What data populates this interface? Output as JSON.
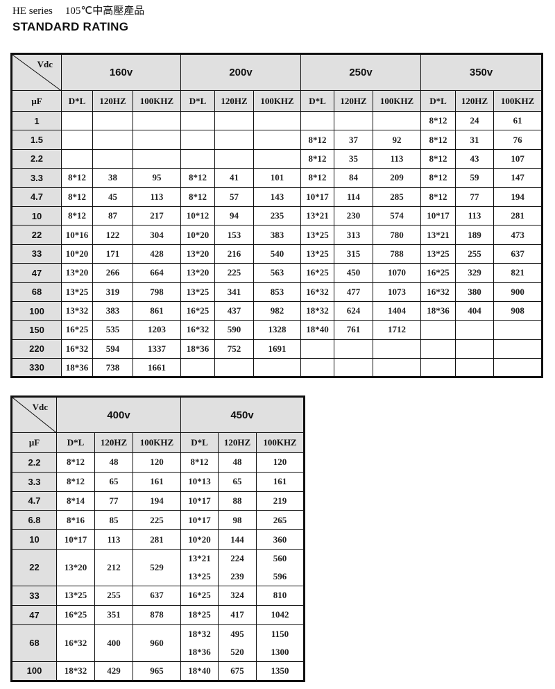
{
  "header": {
    "series": "HE series",
    "temp": "105℃中高壓產品",
    "title": "STANDARD RATING"
  },
  "corner": {
    "vdc": "Vdc",
    "uf": "μF"
  },
  "sub_headers": [
    "D*L",
    "120HZ",
    "100KHZ"
  ],
  "table1": {
    "voltages": [
      "160v",
      "200v",
      "250v",
      "350v"
    ],
    "rows": [
      {
        "uf": "1",
        "cells": [
          [],
          [],
          [],
          [
            "8*12",
            "24",
            "61"
          ]
        ]
      },
      {
        "uf": "1.5",
        "cells": [
          [],
          [],
          [
            "8*12",
            "37",
            "92"
          ],
          [
            "8*12",
            "31",
            "76"
          ]
        ]
      },
      {
        "uf": "2.2",
        "cells": [
          [],
          [],
          [
            "8*12",
            "35",
            "113"
          ],
          [
            "8*12",
            "43",
            "107"
          ]
        ]
      },
      {
        "uf": "3.3",
        "cells": [
          [
            "8*12",
            "38",
            "95"
          ],
          [
            "8*12",
            "41",
            "101"
          ],
          [
            "8*12",
            "84",
            "209"
          ],
          [
            "8*12",
            "59",
            "147"
          ]
        ]
      },
      {
        "uf": "4.7",
        "cells": [
          [
            "8*12",
            "45",
            "113"
          ],
          [
            "8*12",
            "57",
            "143"
          ],
          [
            "10*17",
            "114",
            "285"
          ],
          [
            "8*12",
            "77",
            "194"
          ]
        ]
      },
      {
        "uf": "10",
        "cells": [
          [
            "8*12",
            "87",
            "217"
          ],
          [
            "10*12",
            "94",
            "235"
          ],
          [
            "13*21",
            "230",
            "574"
          ],
          [
            "10*17",
            "113",
            "281"
          ]
        ]
      },
      {
        "uf": "22",
        "cells": [
          [
            "10*16",
            "122",
            "304"
          ],
          [
            "10*20",
            "153",
            "383"
          ],
          [
            "13*25",
            "313",
            "780"
          ],
          [
            "13*21",
            "189",
            "473"
          ]
        ]
      },
      {
        "uf": "33",
        "cells": [
          [
            "10*20",
            "171",
            "428"
          ],
          [
            "13*20",
            "216",
            "540"
          ],
          [
            "13*25",
            "315",
            "788"
          ],
          [
            "13*25",
            "255",
            "637"
          ]
        ]
      },
      {
        "uf": "47",
        "cells": [
          [
            "13*20",
            "266",
            "664"
          ],
          [
            "13*20",
            "225",
            "563"
          ],
          [
            "16*25",
            "450",
            "1070"
          ],
          [
            "16*25",
            "329",
            "821"
          ]
        ]
      },
      {
        "uf": "68",
        "cells": [
          [
            "13*25",
            "319",
            "798"
          ],
          [
            "13*25",
            "341",
            "853"
          ],
          [
            "16*32",
            "477",
            "1073"
          ],
          [
            "16*32",
            "380",
            "900"
          ]
        ]
      },
      {
        "uf": "100",
        "cells": [
          [
            "13*32",
            "383",
            "861"
          ],
          [
            "16*25",
            "437",
            "982"
          ],
          [
            "18*32",
            "624",
            "1404"
          ],
          [
            "18*36",
            "404",
            "908"
          ]
        ]
      },
      {
        "uf": "150",
        "cells": [
          [
            "16*25",
            "535",
            "1203"
          ],
          [
            "16*32",
            "590",
            "1328"
          ],
          [
            "18*40",
            "761",
            "1712"
          ],
          []
        ]
      },
      {
        "uf": "220",
        "cells": [
          [
            "16*32",
            "594",
            "1337"
          ],
          [
            "18*36",
            "752",
            "1691"
          ],
          [],
          []
        ]
      },
      {
        "uf": "330",
        "cells": [
          [
            "18*36",
            "738",
            "1661"
          ],
          [],
          [],
          []
        ]
      }
    ]
  },
  "table2": {
    "voltages": [
      "400v",
      "450v"
    ],
    "rows": [
      {
        "uf": "2.2",
        "cells": [
          [
            [
              "8*12",
              "48",
              "120"
            ]
          ],
          [
            [
              "8*12",
              "48",
              "120"
            ]
          ]
        ]
      },
      {
        "uf": "3.3",
        "cells": [
          [
            [
              "8*12",
              "65",
              "161"
            ]
          ],
          [
            [
              "10*13",
              "65",
              "161"
            ]
          ]
        ]
      },
      {
        "uf": "4.7",
        "cells": [
          [
            [
              "8*14",
              "77",
              "194"
            ]
          ],
          [
            [
              "10*17",
              "88",
              "219"
            ]
          ]
        ]
      },
      {
        "uf": "6.8",
        "cells": [
          [
            [
              "8*16",
              "85",
              "225"
            ]
          ],
          [
            [
              "10*17",
              "98",
              "265"
            ]
          ]
        ]
      },
      {
        "uf": "10",
        "cells": [
          [
            [
              "10*17",
              "113",
              "281"
            ]
          ],
          [
            [
              "10*20",
              "144",
              "360"
            ]
          ]
        ]
      },
      {
        "uf": "22",
        "cells": [
          [
            [
              "13*20",
              "212",
              "529"
            ]
          ],
          [
            [
              "13*21",
              "224",
              "560"
            ],
            [
              "13*25",
              "239",
              "596"
            ]
          ]
        ]
      },
      {
        "uf": "33",
        "cells": [
          [
            [
              "13*25",
              "255",
              "637"
            ]
          ],
          [
            [
              "16*25",
              "324",
              "810"
            ]
          ]
        ]
      },
      {
        "uf": "47",
        "cells": [
          [
            [
              "16*25",
              "351",
              "878"
            ]
          ],
          [
            [
              "18*25",
              "417",
              "1042"
            ]
          ]
        ]
      },
      {
        "uf": "68",
        "cells": [
          [
            [
              "16*32",
              "400",
              "960"
            ]
          ],
          [
            [
              "18*32",
              "495",
              "1150"
            ],
            [
              "18*36",
              "520",
              "1300"
            ]
          ]
        ]
      },
      {
        "uf": "100",
        "cells": [
          [
            [
              "18*32",
              "429",
              "965"
            ]
          ],
          [
            [
              "18*40",
              "675",
              "1350"
            ]
          ]
        ]
      }
    ]
  }
}
